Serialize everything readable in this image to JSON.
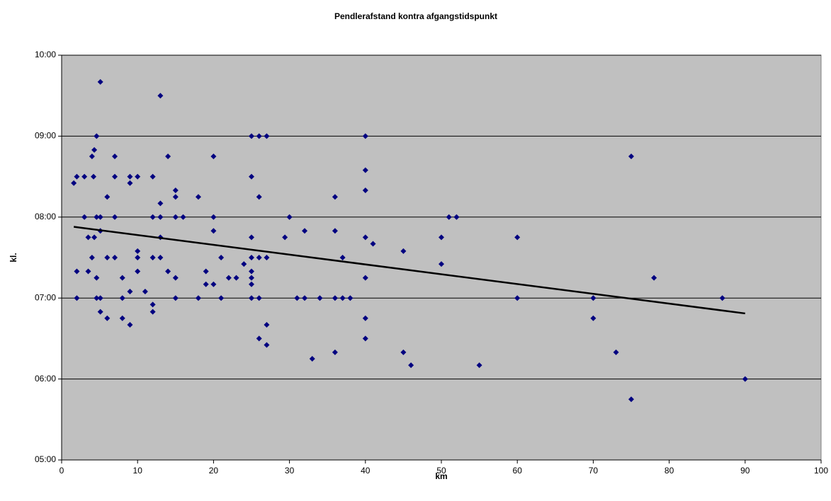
{
  "chart_data": {
    "type": "scatter",
    "title": "Pendlerafstand kontra afgangstidspunkt",
    "x_label": "km",
    "y_label": "kl.",
    "xlim": [
      0,
      100
    ],
    "xticks": [
      0,
      10,
      20,
      30,
      40,
      50,
      60,
      70,
      80,
      90,
      100
    ],
    "ylim": [
      5,
      10
    ],
    "yticks": [
      {
        "value": 5,
        "label": "05:00"
      },
      {
        "value": 6,
        "label": "06:00"
      },
      {
        "value": 7,
        "label": "07:00"
      },
      {
        "value": 8,
        "label": "08:00"
      },
      {
        "value": 9,
        "label": "09:00"
      },
      {
        "value": 10,
        "label": "10:00"
      }
    ],
    "grid": true,
    "background": "#c0c0c0",
    "series": [
      {
        "color": "#000080",
        "x": [
          1.6,
          2,
          2,
          2,
          3,
          3,
          3.5,
          3.5,
          4,
          4.3,
          4.2,
          4,
          4.3,
          4.6,
          4.6,
          4.6,
          4.6,
          5.1,
          5.1,
          5.1,
          5.1,
          5.1,
          6,
          6,
          6,
          7,
          7,
          7,
          7,
          8,
          8,
          8,
          9,
          9,
          9,
          9,
          10,
          10,
          10,
          10,
          11,
          12,
          12,
          12,
          12,
          12,
          13,
          13,
          13,
          13,
          13,
          14,
          14,
          15,
          15,
          15,
          15,
          15,
          16,
          18,
          18,
          19,
          19,
          20,
          20,
          20,
          20,
          21,
          21,
          22,
          23,
          24,
          25,
          25,
          25,
          25,
          25,
          25,
          25,
          25,
          26,
          26,
          26,
          26,
          26,
          27,
          27,
          27,
          27,
          29.4,
          30,
          31,
          32,
          32,
          33,
          34,
          36,
          36,
          36,
          36,
          37,
          37,
          38,
          40,
          40,
          40,
          40,
          40,
          40,
          40,
          41,
          45,
          45,
          46,
          50,
          50,
          51,
          52,
          55,
          60,
          60,
          70,
          70,
          73,
          75,
          75,
          78,
          87,
          90
        ],
        "values": [
          8.42,
          8.5,
          7.33,
          7,
          8.5,
          8,
          7.75,
          7.33,
          8.75,
          8.83,
          8.5,
          7.5,
          7.75,
          9,
          8,
          7.25,
          7,
          9.67,
          8,
          7.83,
          7,
          6.83,
          8.25,
          7.5,
          6.75,
          8.75,
          8.5,
          8,
          7.5,
          7.25,
          7,
          6.75,
          8.5,
          8.42,
          7.08,
          6.67,
          8.5,
          7.58,
          7.5,
          7.33,
          7.08,
          8.5,
          8,
          7.5,
          6.92,
          6.83,
          9.5,
          8.17,
          8,
          7.75,
          7.5,
          8.75,
          7.33,
          8.33,
          8.25,
          8,
          7.25,
          7,
          8,
          8.25,
          7,
          7.33,
          7.17,
          8.75,
          8,
          7.83,
          7.17,
          7.5,
          7,
          7.25,
          7.25,
          7.42,
          9,
          8.5,
          7.75,
          7.5,
          7.33,
          7.25,
          7.17,
          7,
          9,
          8.25,
          7.5,
          7,
          6.5,
          9,
          7.5,
          6.67,
          6.42,
          7.75,
          8,
          7,
          7.83,
          7,
          6.25,
          7,
          8.25,
          7.83,
          7,
          6.33,
          7.5,
          7,
          7,
          9,
          8.58,
          8.33,
          7.75,
          7.25,
          6.75,
          6.5,
          7.67,
          7.58,
          6.33,
          6.17,
          7.75,
          7.42,
          8,
          8,
          6.17,
          7.75,
          7,
          7,
          6.75,
          6.33,
          8.75,
          5.75,
          7.25,
          7,
          6
        ]
      }
    ],
    "trendline": {
      "color": "#000000",
      "x": [
        1.6,
        90
      ],
      "values": [
        7.88,
        6.81
      ]
    }
  }
}
